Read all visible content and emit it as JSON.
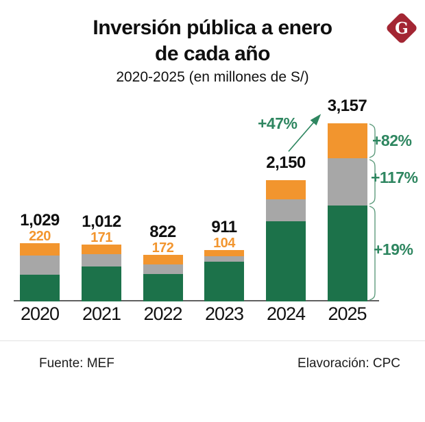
{
  "header": {
    "title_line1": "Inversión pública a enero",
    "title_line2": "de cada año",
    "subtitle": "2020-2025 (en millones de S/)",
    "logo_letter": "G"
  },
  "colors": {
    "green": "#1C724A",
    "gray": "#A7A7A7",
    "orange": "#F2952E",
    "annotation_green": "#2E8660",
    "brace_green": "#5D9B7C",
    "logo_red": "#A32633",
    "axis_gray": "#5F5F5F"
  },
  "chart_data": {
    "type": "bar",
    "stacked": true,
    "title": "Inversión pública a enero de cada año",
    "subtitle": "2020-2025 (en millones de S/)",
    "unit": "millones de S/",
    "categories": [
      "2020",
      "2021",
      "2022",
      "2023",
      "2024",
      "2025"
    ],
    "totals": [
      1029,
      1012,
      822,
      911,
      2150,
      3157
    ],
    "total_labels": [
      "1,029",
      "1,012",
      "822",
      "911",
      "2,150",
      "3,157"
    ],
    "series": [
      {
        "name": "green",
        "color_key": "green",
        "values": [
          469,
          616,
          480,
          710,
          1425,
          1703
        ]
      },
      {
        "name": "gray",
        "color_key": "gray",
        "values": [
          340,
          225,
          170,
          97,
          385,
          835
        ]
      },
      {
        "name": "orange",
        "color_key": "orange",
        "values": [
          220,
          171,
          172,
          104,
          340,
          619
        ]
      }
    ],
    "segment_value_labels": {
      "series": "orange",
      "labels": [
        "220",
        "171",
        "172",
        "104",
        "",
        ""
      ]
    },
    "annotations": {
      "growth_total": "+47%",
      "growth_orange": "+82%",
      "growth_gray": "+117%",
      "growth_green": "+19%"
    },
    "ylim": [
      0,
      3400
    ],
    "grid": false,
    "legend": false
  },
  "footer": {
    "source": "Fuente: MEF",
    "elaboration": "Elavoración: CPC"
  }
}
